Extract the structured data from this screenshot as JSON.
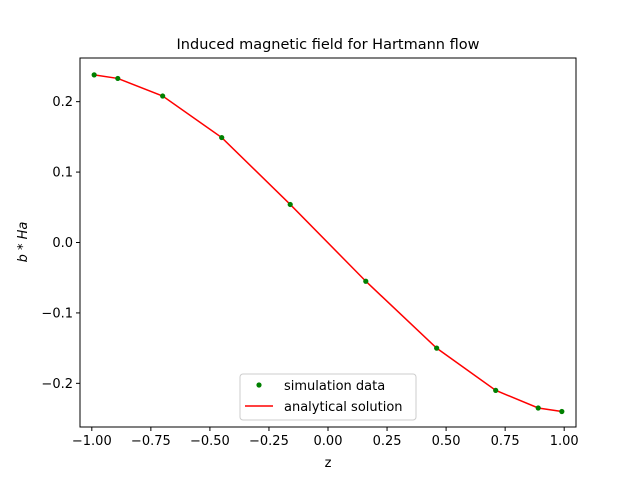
{
  "chart_data": {
    "type": "line",
    "title": "Induced magnetic field for Hartmann flow",
    "xlabel": "z",
    "ylabel_main": "b",
    "ylabel_op": " * ",
    "ylabel_sub": "Ha",
    "xlim": [
      -1.05,
      1.05
    ],
    "ylim": [
      -0.262,
      0.262
    ],
    "xticks": [
      -1.0,
      -0.75,
      -0.5,
      -0.25,
      0.0,
      0.25,
      0.5,
      0.75,
      1.0
    ],
    "xtick_labels": [
      "−1.00",
      "−0.75",
      "−0.50",
      "−0.25",
      "0.00",
      "0.25",
      "0.50",
      "0.75",
      "1.00"
    ],
    "yticks": [
      -0.2,
      -0.1,
      0.0,
      0.1,
      0.2
    ],
    "ytick_labels": [
      "−0.2",
      "−0.1",
      "0.0",
      "0.1",
      "0.2"
    ],
    "grid": false,
    "legend_position": "lower-center",
    "series": [
      {
        "name": "simulation data",
        "style": "points",
        "color": "#008000",
        "x": [
          -0.99,
          -0.89,
          -0.7,
          -0.45,
          -0.16,
          0.16,
          0.46,
          0.71,
          0.89,
          0.99
        ],
        "y": [
          0.238,
          0.233,
          0.208,
          0.149,
          0.054,
          -0.055,
          -0.15,
          -0.21,
          -0.235,
          -0.24
        ]
      },
      {
        "name": "analytical solution",
        "style": "line",
        "color": "#ff0000",
        "x": [
          -0.99,
          -0.89,
          -0.7,
          -0.45,
          -0.16,
          0.16,
          0.46,
          0.71,
          0.89,
          0.99
        ],
        "y": [
          0.238,
          0.233,
          0.208,
          0.149,
          0.054,
          -0.055,
          -0.15,
          -0.21,
          -0.235,
          -0.24
        ]
      }
    ]
  }
}
